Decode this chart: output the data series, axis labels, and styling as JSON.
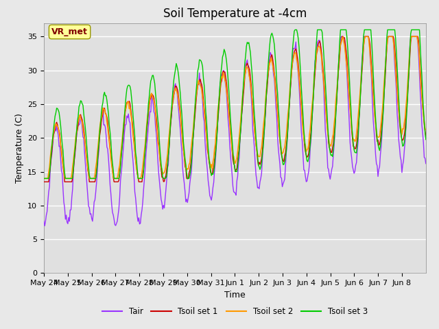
{
  "title": "Soil Temperature at -4cm",
  "xlabel": "Time",
  "ylabel": "Temperature (C)",
  "ylim": [
    0,
    37
  ],
  "yticks": [
    0,
    5,
    10,
    15,
    20,
    25,
    30,
    35
  ],
  "legend_labels": [
    "Tair",
    "Tsoil set 1",
    "Tsoil set 2",
    "Tsoil set 3"
  ],
  "legend_colors": [
    "#9933FF",
    "#CC0000",
    "#FF9900",
    "#00CC00"
  ],
  "annotation_text": "VR_met",
  "annotation_color": "#800000",
  "annotation_bg": "#FFFF99",
  "background_color": "#E8E8E8",
  "plot_bg": "#E0E0E0",
  "grid_color": "#FFFFFF",
  "title_fontsize": 12,
  "axis_label_fontsize": 9,
  "tick_fontsize": 8,
  "x_tick_labels": [
    "May 24",
    "May 25",
    "May 26",
    "May 27",
    "May 28",
    "May 29",
    "May 30",
    "May 31",
    "Jun 1",
    "Jun 2",
    "Jun 3",
    "Jun 4",
    "Jun 5",
    "Jun 6",
    "Jun 7",
    "Jun 8"
  ],
  "n_points": 480
}
